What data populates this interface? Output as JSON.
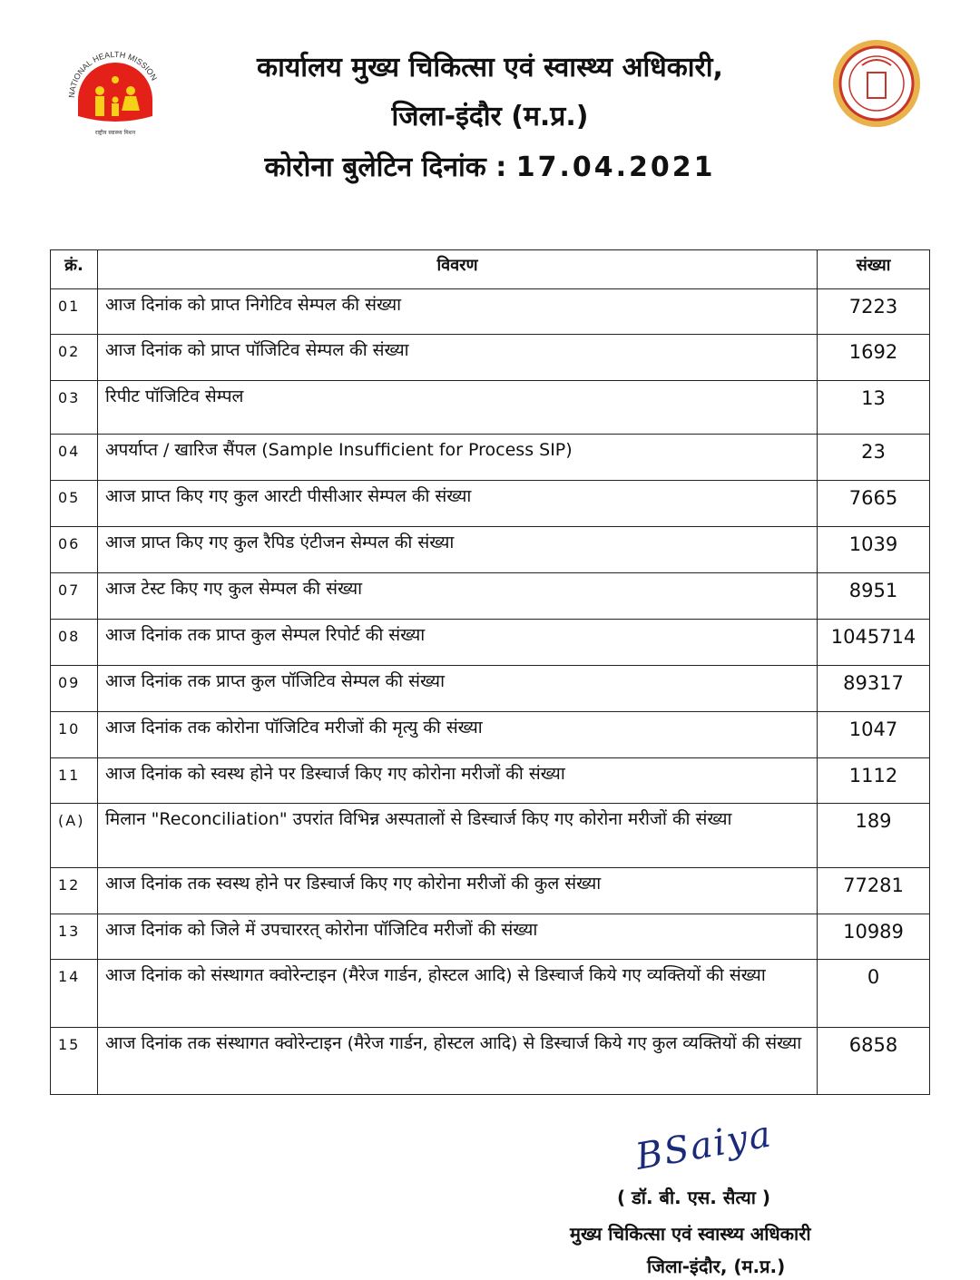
{
  "header": {
    "line1": "कार्यालय मुख्य चिकित्सा एवं स्वास्थ्य अधिकारी,",
    "line2": "जिला-इंदौर (म.प्र.)",
    "line3_label": "कोरोना बुलेटिन दिनांक :",
    "date": "17.04.2021",
    "left_logo_text": "NATIONAL HEALTH MISSION",
    "left_logo_subtext": "राष्ट्रीय स्वास्थ्य मिशन",
    "left_logo_color": "#e32119",
    "right_logo_color": "#c8352a"
  },
  "table": {
    "headers": [
      "क्रं.",
      "विवरण",
      "संख्या"
    ],
    "rows": [
      {
        "no": "01",
        "desc": "आज दिनांक को प्राप्त निगेटिव सेम्पल की संख्या",
        "value": "7223"
      },
      {
        "no": "02",
        "desc": "आज दिनांक को प्राप्त पॉजिटिव सेम्पल की संख्या",
        "value": "1692"
      },
      {
        "no": "03",
        "desc": "रिपीट पॉजिटिव सेम्पल",
        "value": "13"
      },
      {
        "no": "04",
        "desc": "अपर्याप्त / खारिज सैंपल (Sample Insufficient for Process SIP)",
        "value": "23"
      },
      {
        "no": "05",
        "desc": "आज प्राप्त किए गए कुल आरटी पीसीआर सेम्पल की संख्या",
        "value": "7665"
      },
      {
        "no": "06",
        "desc": "आज प्राप्त किए गए कुल रैपिड एंटीजन सेम्पल की संख्या",
        "value": "1039"
      },
      {
        "no": "07",
        "desc": "आज टेस्ट किए गए कुल सेम्पल की संख्या",
        "value": "8951"
      },
      {
        "no": "08",
        "desc": "आज दिनांक तक प्राप्त कुल सेम्पल रिपोर्ट की संख्या",
        "value": "1045714"
      },
      {
        "no": "09",
        "desc": "आज दिनांक तक प्राप्त कुल पॉजिटिव सेम्पल की संख्या",
        "value": "89317"
      },
      {
        "no": "10",
        "desc": "आज दिनांक तक कोरोना पॉजिटिव मरीजों की मृत्यु की संख्या",
        "value": "1047"
      },
      {
        "no": "11",
        "desc": "आज दिनांक को स्वस्थ होने पर डिस्चार्ज किए गए कोरोना मरीजों की संख्या",
        "value": "1112"
      },
      {
        "no": "(A)",
        "desc": "मिलान \"Reconciliation\" उपरांत विभिन्न अस्पतालों से डिस्चार्ज किए गए कोरोना मरीजों की संख्या",
        "value": "189"
      },
      {
        "no": "12",
        "desc": "आज दिनांक तक स्वस्थ होने पर डिस्चार्ज किए गए कोरोना मरीजों की कुल संख्या",
        "value": "77281"
      },
      {
        "no": "13",
        "desc": "आज दिनांक को जिले में उपचाररत् कोरोना पॉजिटिव मरीजों की संख्या",
        "value": "10989"
      },
      {
        "no": "14",
        "desc": "आज दिनांक को संस्थागत क्वोरेन्टाइन (मैरेज गार्डन, होस्टल आदि) से डिस्चार्ज किये गए व्यक्तियों की संख्या",
        "value": "0"
      },
      {
        "no": "15",
        "desc": "आज दिनांक तक संस्थागत क्वोरेन्टाइन (मैरेज गार्डन, होस्टल आदि) से डिस्चार्ज किये गए कुल व्यक्तियों की संख्या",
        "value": "6858"
      }
    ]
  },
  "signature": {
    "handwritten": "BSaiya",
    "name": "( डॉ. बी. एस. सैत्या )",
    "designation": "मुख्य चिकित्सा एवं स्वास्थ्य अधिकारी",
    "place": "जिला-इंदौर, (म.प्र.)"
  }
}
